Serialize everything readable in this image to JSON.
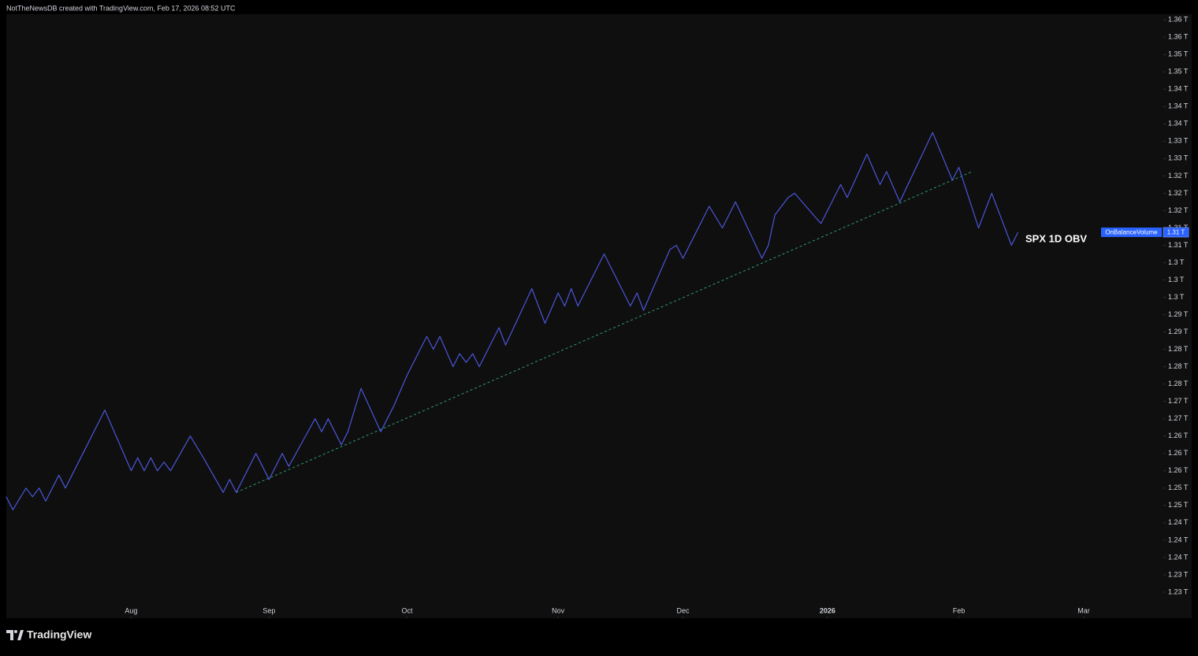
{
  "header": "NotTheNewsDB created with TradingView.com, Feb 17, 2026 08:52 UTC",
  "brand": "TradingView",
  "chart_data": {
    "type": "line",
    "annotation": "SPX 1D OBV",
    "xlim": [
      0,
      176
    ],
    "xticks": [
      {
        "value": 19,
        "label": "Aug"
      },
      {
        "value": 40,
        "label": "Sep"
      },
      {
        "value": 61,
        "label": "Oct"
      },
      {
        "value": 84,
        "label": "Nov"
      },
      {
        "value": 103,
        "label": "Dec"
      },
      {
        "value": 125,
        "label": "2026"
      },
      {
        "value": 145,
        "label": "Feb"
      },
      {
        "value": 164,
        "label": "Mar"
      }
    ],
    "ylim": [
      1.222,
      1.3613
    ],
    "yticks": [
      {
        "value": 1.36,
        "label": "1.36 T"
      },
      {
        "value": 1.356,
        "label": "1.36 T"
      },
      {
        "value": 1.352,
        "label": "1.35 T"
      },
      {
        "value": 1.348,
        "label": "1.35 T"
      },
      {
        "value": 1.344,
        "label": "1.34 T"
      },
      {
        "value": 1.34,
        "label": "1.34 T"
      },
      {
        "value": 1.336,
        "label": "1.34 T"
      },
      {
        "value": 1.332,
        "label": "1.33 T"
      },
      {
        "value": 1.328,
        "label": "1.33 T"
      },
      {
        "value": 1.324,
        "label": "1.32 T"
      },
      {
        "value": 1.32,
        "label": "1.32 T"
      },
      {
        "value": 1.316,
        "label": "1.32 T"
      },
      {
        "value": 1.312,
        "label": "1.31 T"
      },
      {
        "value": 1.308,
        "label": "1.31 T"
      },
      {
        "value": 1.304,
        "label": "1.3 T"
      },
      {
        "value": 1.3,
        "label": "1.3 T"
      },
      {
        "value": 1.296,
        "label": "1.3 T"
      },
      {
        "value": 1.292,
        "label": "1.29 T"
      },
      {
        "value": 1.288,
        "label": "1.29 T"
      },
      {
        "value": 1.284,
        "label": "1.28 T"
      },
      {
        "value": 1.28,
        "label": "1.28 T"
      },
      {
        "value": 1.276,
        "label": "1.28 T"
      },
      {
        "value": 1.272,
        "label": "1.27 T"
      },
      {
        "value": 1.268,
        "label": "1.27 T"
      },
      {
        "value": 1.264,
        "label": "1.26 T"
      },
      {
        "value": 1.26,
        "label": "1.26 T"
      },
      {
        "value": 1.256,
        "label": "1.26 T"
      },
      {
        "value": 1.252,
        "label": "1.25 T"
      },
      {
        "value": 1.248,
        "label": "1.25 T"
      },
      {
        "value": 1.244,
        "label": "1.24 T"
      },
      {
        "value": 1.24,
        "label": "1.24 T"
      },
      {
        "value": 1.236,
        "label": "1.24 T"
      },
      {
        "value": 1.232,
        "label": "1.23 T"
      },
      {
        "value": 1.228,
        "label": "1.23 T"
      }
    ],
    "grid": false,
    "series": [
      {
        "name": "OnBalanceVolume",
        "color": "#4a56d8",
        "last_value_label": "1.31 T",
        "x": [
          0,
          1,
          3,
          4,
          5,
          6,
          8,
          9,
          15,
          19,
          20,
          21,
          22,
          23,
          24,
          25,
          28,
          30,
          33,
          34,
          35,
          38,
          40,
          42,
          43,
          47,
          48,
          49,
          51,
          52,
          54,
          57,
          59,
          61,
          64,
          65,
          66,
          68,
          69,
          70,
          71,
          72,
          75,
          76,
          80,
          82,
          84,
          85,
          86,
          87,
          91,
          95,
          96,
          97,
          99,
          101,
          102,
          103,
          107,
          109,
          111,
          115,
          116,
          117,
          119,
          120,
          124,
          127,
          128,
          131,
          133,
          134,
          136,
          141,
          144,
          145,
          148,
          150,
          153,
          154
        ],
        "values": [
          1.25,
          1.247,
          1.252,
          1.25,
          1.252,
          1.249,
          1.255,
          1.252,
          1.27,
          1.256,
          1.259,
          1.256,
          1.259,
          1.256,
          1.258,
          1.256,
          1.264,
          1.259,
          1.251,
          1.254,
          1.251,
          1.26,
          1.254,
          1.26,
          1.257,
          1.268,
          1.265,
          1.268,
          1.262,
          1.265,
          1.275,
          1.265,
          1.271,
          1.278,
          1.287,
          1.284,
          1.287,
          1.28,
          1.283,
          1.281,
          1.283,
          1.28,
          1.289,
          1.285,
          1.298,
          1.29,
          1.297,
          1.294,
          1.298,
          1.294,
          1.306,
          1.294,
          1.297,
          1.293,
          1.3,
          1.307,
          1.308,
          1.305,
          1.317,
          1.312,
          1.318,
          1.305,
          1.308,
          1.315,
          1.319,
          1.32,
          1.313,
          1.322,
          1.319,
          1.329,
          1.322,
          1.325,
          1.318,
          1.334,
          1.323,
          1.326,
          1.312,
          1.32,
          1.308,
          1.311
        ]
      }
    ],
    "trendline": {
      "color": "#2e9e6e",
      "x": [
        35,
        147
      ],
      "values": [
        1.251,
        1.325
      ]
    }
  }
}
